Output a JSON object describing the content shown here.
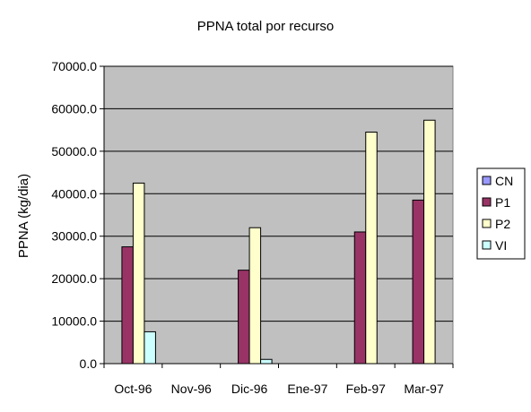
{
  "chart_data": {
    "type": "bar",
    "title": "PPNA total por recurso",
    "xlabel": "",
    "ylabel": "PPNA (kg/dia)",
    "categories": [
      "Oct-96",
      "Nov-96",
      "Dic-96",
      "Ene-97",
      "Feb-97",
      "Mar-97"
    ],
    "ylim": [
      0,
      70000
    ],
    "yticks": [
      0,
      10000,
      20000,
      30000,
      40000,
      50000,
      60000,
      70000
    ],
    "ytick_labels": [
      "0.0",
      "10000.0",
      "20000.0",
      "30000.0",
      "40000.0",
      "50000.0",
      "60000.0",
      "70000.0"
    ],
    "grid": true,
    "legend_position": "right",
    "plot_background": "#c0c0c0",
    "series": [
      {
        "name": "CN",
        "color": "#9999ff",
        "values": [
          0,
          0,
          0,
          0,
          0,
          0
        ]
      },
      {
        "name": "P1",
        "color": "#993366",
        "values": [
          27500,
          0,
          22000,
          0,
          31000,
          38500
        ]
      },
      {
        "name": "P2",
        "color": "#ffffcc",
        "values": [
          42500,
          0,
          32000,
          0,
          54500,
          57300
        ]
      },
      {
        "name": "VI",
        "color": "#ccffff",
        "values": [
          7500,
          0,
          1000,
          0,
          0,
          0
        ]
      }
    ]
  }
}
